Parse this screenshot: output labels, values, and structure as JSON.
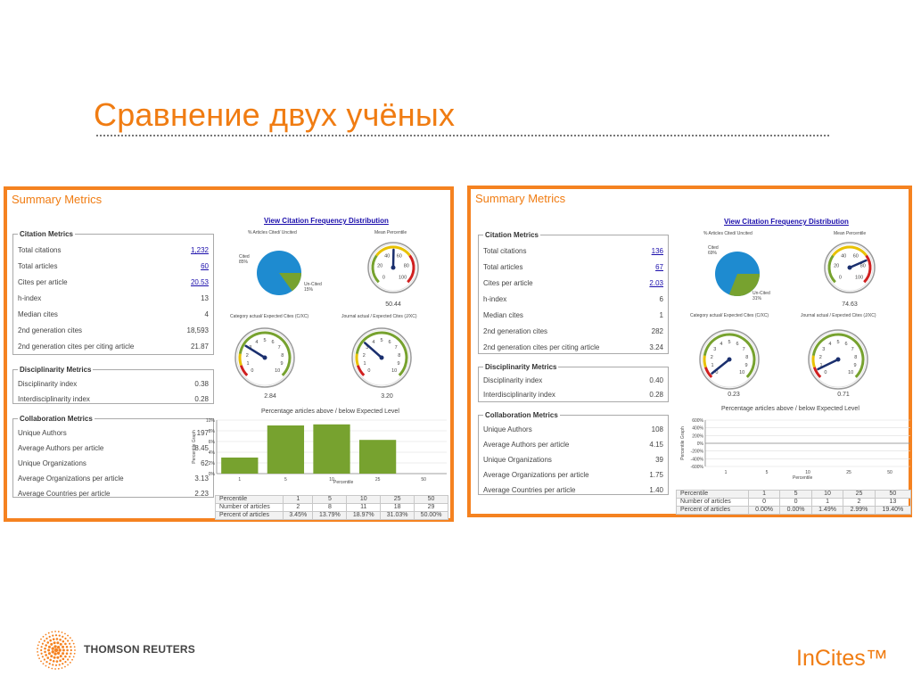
{
  "slide": {
    "title": "Сравнение двух учёных",
    "footer_brand": "THOMSON REUTERS",
    "footer_product": "InCites™"
  },
  "panels": [
    {
      "title": "Summary Metrics",
      "citation_metrics_title": "Citation Metrics",
      "citation_metrics": [
        {
          "label": "Total citations",
          "value": "1,232"
        },
        {
          "label": "Total articles",
          "value": "60"
        },
        {
          "label": "Cites per article",
          "value": "20.53"
        },
        {
          "label": "h-index",
          "value": "13"
        },
        {
          "label": "Median cites",
          "value": "4"
        },
        {
          "label": "2nd generation cites",
          "value": "18,593"
        },
        {
          "label": "2nd generation cites per citing article",
          "value": "21.87"
        }
      ],
      "disciplinarity_title": "Disciplinarity Metrics",
      "disciplinarity": [
        {
          "label": "Disciplinarity index",
          "value": "0.38"
        },
        {
          "label": "Interdisciplinarity index",
          "value": "0.28"
        }
      ],
      "collaboration_title": "Collaboration Metrics",
      "collaboration": [
        {
          "label": "Unique Authors",
          "value": "197"
        },
        {
          "label": "Average Authors per article",
          "value": "8.45"
        },
        {
          "label": "Unique Organizations",
          "value": "62"
        },
        {
          "label": "Average Organizations per article",
          "value": "3.13"
        },
        {
          "label": "Average Countries per article",
          "value": "2.23"
        }
      ],
      "view_link": "View Citation Frequency Distribution",
      "pie": {
        "caption": "% Articles Cited/ Uncited",
        "cited_label": "Cited",
        "cited_pct": "85%",
        "uncited_label": "Un-Cited",
        "uncited_pct": "15%",
        "cited_fraction": 0.85
      },
      "gauges": [
        {
          "caption": "Mean Percentile",
          "value": "50.44",
          "ticks": [
            "0",
            "20",
            "40",
            "60",
            "80",
            "100"
          ]
        },
        {
          "caption": "Category actual/ Expected Cites (C/XC)",
          "value": "2.84",
          "ticks": [
            "0",
            "1",
            "2",
            "3",
            "4",
            "5",
            "6",
            "7",
            "8",
            "9",
            "10"
          ]
        },
        {
          "caption": "Journal actual / Expected Cites (J/XC)",
          "value": "3.20",
          "ticks": [
            "0",
            "1",
            "2",
            "3",
            "4",
            "5",
            "6",
            "7",
            "8",
            "9",
            "10"
          ]
        }
      ],
      "bar_title": "Percentage articles above / below Expected Level",
      "bar_ylabel": "Percentile Graph",
      "bar_xlabel": "Percentile",
      "table": {
        "rows": [
          [
            "Percentile",
            "1",
            "5",
            "10",
            "25",
            "50"
          ],
          [
            "Number of articles",
            "2",
            "8",
            "11",
            "18",
            "29"
          ],
          [
            "Percent of articles",
            "3.45%",
            "13.79%",
            "18.97%",
            "31.03%",
            "50.00%"
          ]
        ]
      }
    },
    {
      "title": "Summary Metrics",
      "citation_metrics_title": "Citation Metrics",
      "citation_metrics": [
        {
          "label": "Total citations",
          "value": "136"
        },
        {
          "label": "Total articles",
          "value": "67"
        },
        {
          "label": "Cites per article",
          "value": "2.03"
        },
        {
          "label": "h-index",
          "value": "6"
        },
        {
          "label": "Median cites",
          "value": "1"
        },
        {
          "label": "2nd generation cites",
          "value": "282"
        },
        {
          "label": "2nd generation cites per citing article",
          "value": "3.24"
        }
      ],
      "disciplinarity_title": "Disciplinarity Metrics",
      "disciplinarity": [
        {
          "label": "Disciplinarity index",
          "value": "0.40"
        },
        {
          "label": "Interdisciplinarity index",
          "value": "0.28"
        }
      ],
      "collaboration_title": "Collaboration Metrics",
      "collaboration": [
        {
          "label": "Unique Authors",
          "value": "108"
        },
        {
          "label": "Average Authors per article",
          "value": "4.15"
        },
        {
          "label": "Unique Organizations",
          "value": "39"
        },
        {
          "label": "Average Organizations per article",
          "value": "1.75"
        },
        {
          "label": "Average Countries per article",
          "value": "1.40"
        }
      ],
      "view_link": "View Citation Frequency Distribution",
      "pie": {
        "caption": "% Articles Cited/ Uncited",
        "cited_label": "Cited",
        "cited_pct": "69%",
        "uncited_label": "Un-Cited",
        "uncited_pct": "31%",
        "cited_fraction": 0.69
      },
      "gauges": [
        {
          "caption": "Mean Percentile",
          "value": "74.63",
          "ticks": [
            "0",
            "20",
            "40",
            "60",
            "80",
            "100"
          ]
        },
        {
          "caption": "Category actual/ Expected Cites (C/XC)",
          "value": "0.23",
          "ticks": [
            "0",
            "1",
            "2",
            "3",
            "4",
            "5",
            "6",
            "7",
            "8",
            "9",
            "10"
          ]
        },
        {
          "caption": "Journal actual / Expected Cites (J/XC)",
          "value": "0.71",
          "ticks": [
            "0",
            "1",
            "2",
            "3",
            "4",
            "5",
            "6",
            "7",
            "8",
            "9",
            "10"
          ]
        }
      ],
      "bar_title": "Percentage articles above / below Expected Level",
      "bar_ylabel": "Percentile Graph",
      "bar_xlabel": "Percentile",
      "table": {
        "rows": [
          [
            "Percentile",
            "1",
            "5",
            "10",
            "25",
            "50"
          ],
          [
            "Number of articles",
            "0",
            "0",
            "1",
            "2",
            "13"
          ],
          [
            "Percent of articles",
            "0.00%",
            "0.00%",
            "1.49%",
            "2.99%",
            "19.40%"
          ]
        ]
      }
    }
  ],
  "chart_data": [
    {
      "type": "bar",
      "title": "Percentage articles above / below Expected Level",
      "xlabel": "Percentile",
      "ylabel": "Percentile Graph",
      "categories": [
        "1",
        "5",
        "10",
        "25",
        "50"
      ],
      "values": [
        3,
        9,
        9.2,
        6.3,
        0
      ],
      "ytick_labels": [
        "10%",
        "8%",
        "6%",
        "4%",
        "2%",
        "0%"
      ],
      "ylim": [
        0,
        10
      ],
      "grid": true,
      "bar_color": "#77a22f"
    },
    {
      "type": "bar",
      "title": "Percentage articles above / below Expected Level",
      "xlabel": "Percentile",
      "ylabel": "Percentile Graph",
      "categories": [
        "1",
        "5",
        "10",
        "25",
        "50"
      ],
      "values": [
        0,
        0,
        0,
        0,
        0
      ],
      "ytick_labels": [
        "600%",
        "400%",
        "200%",
        "0%",
        "-200%",
        "-400%",
        "-600%"
      ],
      "ylim": [
        -600,
        600
      ],
      "grid": true,
      "bar_color": "#77a22f"
    }
  ]
}
